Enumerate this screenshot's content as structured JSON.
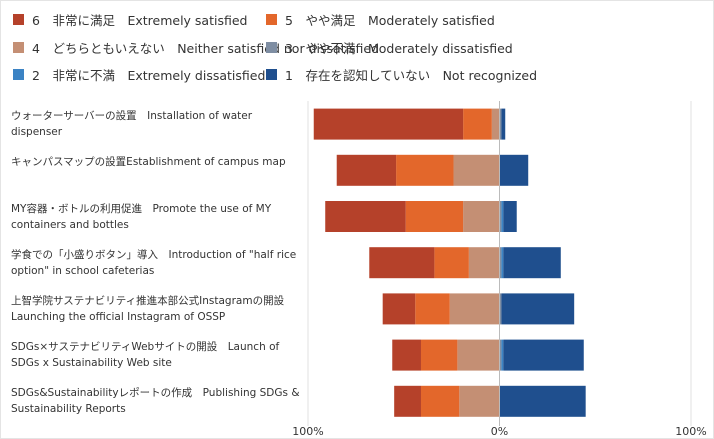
{
  "chart_data": {
    "type": "bar",
    "orientation": "horizontal",
    "stacked": "diverging",
    "categories": [
      "ウォーターサーバーの設置　Installation of water dispenser",
      "キャンパスマップの設置Establishment of campus map",
      "MY容器・ボトルの利用促進　Promote the use of MY containers and bottles",
      "学食での「小盛りボタン」導入　Introduction of \"half rice option\" in school cafeterias",
      "上智学院サステナビリティ推進本部公式Instagramの開設　Launching the official Instagram of OSSP",
      "SDGs×サステナビリティWebサイトの開設　Launch of SDGs x Sustainability Web site",
      "SDGs&Sustainabilityレポートの作成　Publishing SDGs & Sustainability Reports"
    ],
    "series": [
      {
        "name": "6　非常に満足　Extremely satisfied",
        "color": "#b5412a",
        "values": [
          78,
          31,
          42,
          34,
          17,
          15,
          14
        ]
      },
      {
        "name": "5　やや満足　Moderately satisfied",
        "color": "#e3672b",
        "values": [
          15,
          30,
          30,
          18,
          18,
          19,
          20
        ]
      },
      {
        "name": "4　どちらともいえない　Neither satisfied nor dissatisfied",
        "color": "#c48f74",
        "values": [
          4,
          24,
          19,
          16,
          26,
          22,
          21
        ]
      },
      {
        "name": "3　やや不満　Moderately dissatisfied",
        "color": "#7f8ea3",
        "values": [
          1,
          0,
          1,
          1,
          1,
          1,
          0
        ]
      },
      {
        "name": "2　非常に不満　Extremely dissatisfied",
        "color": "#3b83c4",
        "values": [
          0,
          0,
          1,
          1,
          0,
          1,
          0
        ]
      },
      {
        "name": "1　存在を認知していない　Not recognized",
        "color": "#1f4f8e",
        "values": [
          2,
          15,
          7,
          30,
          38,
          42,
          45
        ]
      }
    ],
    "xlim": [
      -100,
      100
    ],
    "xticks": [
      {
        "value": -100,
        "label": "100%"
      },
      {
        "value": 0,
        "label": "0%"
      },
      {
        "value": 100,
        "label": "100%"
      }
    ],
    "grid": true
  }
}
